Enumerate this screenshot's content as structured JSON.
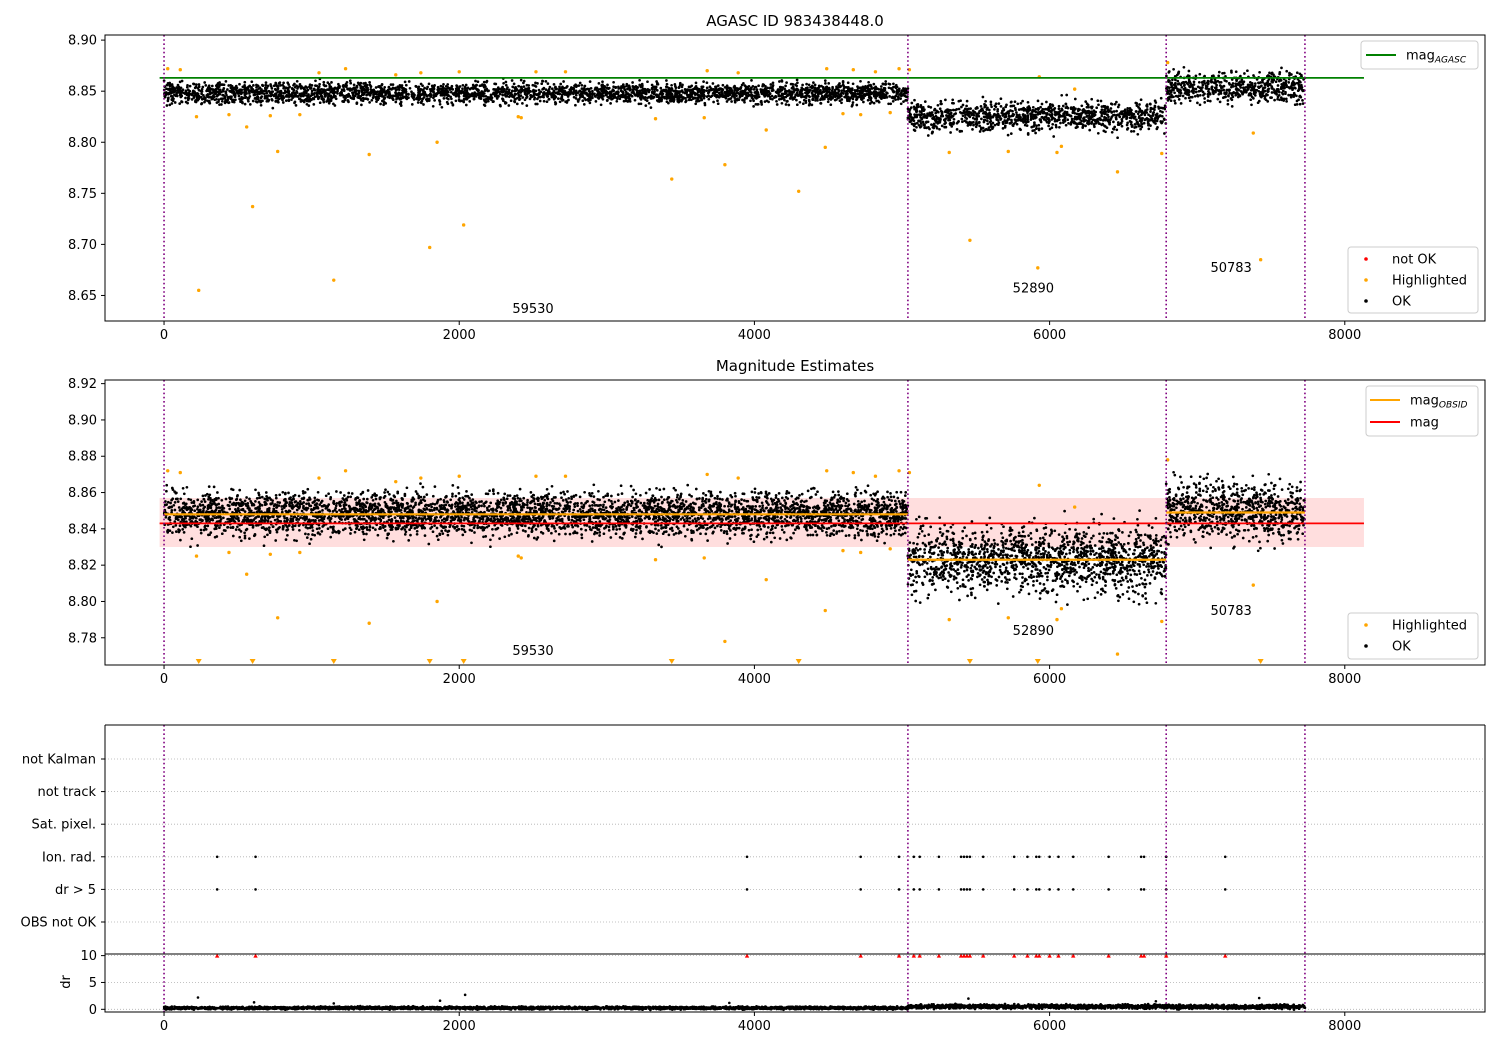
{
  "chart_data": [
    {
      "type": "scatter",
      "title": "AGASC ID 983438448.0",
      "xlim": [
        -400,
        8950
      ],
      "ylim": [
        8.625,
        8.905
      ],
      "x_ticks": [
        0,
        2000,
        4000,
        6000,
        8000
      ],
      "x_tick_labels": [
        "0",
        "2000",
        "4000",
        "6000",
        "8000"
      ],
      "y_ticks": [
        8.65,
        8.7,
        8.75,
        8.8,
        8.85,
        8.9
      ],
      "y_tick_labels": [
        "8.65",
        "8.70",
        "8.75",
        "8.80",
        "8.85",
        "8.90"
      ],
      "grid": false,
      "observation_boundaries": [
        0,
        5040,
        6790,
        7730
      ],
      "observation_labels": [
        {
          "x": 2500,
          "y": 8.633,
          "text": "59530"
        },
        {
          "x": 5890,
          "y": 8.653,
          "text": "52890"
        },
        {
          "x": 7230,
          "y": 8.673,
          "text": "50783"
        }
      ],
      "reference_lines": [
        {
          "name": "mag",
          "subscript": "AGASC",
          "value": 8.863,
          "x_range": [
            -30,
            8130
          ],
          "color": "#008000"
        }
      ],
      "segments": [
        {
          "x_start": 0,
          "x_end": 5040,
          "level": 8.848,
          "spread": 0.005
        },
        {
          "x_start": 5040,
          "x_end": 6790,
          "level": 8.825,
          "spread": 0.007
        },
        {
          "x_start": 6790,
          "x_end": 7730,
          "level": 8.853,
          "spread": 0.007
        }
      ],
      "highlighted_points": [
        [
          25,
          8.872
        ],
        [
          110,
          8.871
        ],
        [
          220,
          8.825
        ],
        [
          235,
          8.655
        ],
        [
          440,
          8.827
        ],
        [
          560,
          8.815
        ],
        [
          600,
          8.737
        ],
        [
          720,
          8.826
        ],
        [
          770,
          8.791
        ],
        [
          920,
          8.827
        ],
        [
          1050,
          8.868
        ],
        [
          1150,
          8.665
        ],
        [
          1230,
          8.872
        ],
        [
          1390,
          8.788
        ],
        [
          1570,
          8.866
        ],
        [
          1740,
          8.868
        ],
        [
          1800,
          8.697
        ],
        [
          1850,
          8.8
        ],
        [
          2000,
          8.869
        ],
        [
          2030,
          8.719
        ],
        [
          2400,
          8.825
        ],
        [
          2420,
          8.824
        ],
        [
          2520,
          8.869
        ],
        [
          2720,
          8.869
        ],
        [
          3330,
          8.823
        ],
        [
          3440,
          8.764
        ],
        [
          3660,
          8.824
        ],
        [
          3680,
          8.87
        ],
        [
          3800,
          8.778
        ],
        [
          3890,
          8.868
        ],
        [
          4080,
          8.812
        ],
        [
          4300,
          8.752
        ],
        [
          4480,
          8.795
        ],
        [
          4490,
          8.872
        ],
        [
          4600,
          8.828
        ],
        [
          4670,
          8.871
        ],
        [
          4720,
          8.827
        ],
        [
          4820,
          8.869
        ],
        [
          4920,
          8.829
        ],
        [
          4980,
          8.872
        ],
        [
          5050,
          8.871
        ],
        [
          5320,
          8.79
        ],
        [
          5460,
          8.704
        ],
        [
          5720,
          8.791
        ],
        [
          5920,
          8.677
        ],
        [
          5930,
          8.864
        ],
        [
          6050,
          8.79
        ],
        [
          6080,
          8.796
        ],
        [
          6170,
          8.852
        ],
        [
          6460,
          8.771
        ],
        [
          6760,
          8.789
        ],
        [
          6800,
          8.878
        ],
        [
          7380,
          8.809
        ],
        [
          7430,
          8.685
        ]
      ],
      "legend": {
        "position": "top-right",
        "entries": [
          {
            "label": "mag",
            "subscript": "AGASC",
            "color": "#008000"
          }
        ]
      },
      "legend2": {
        "position": "lower-right",
        "entries": [
          {
            "label": "not OK",
            "color": "#ff0000"
          },
          {
            "label": "Highlighted",
            "color": "#ffa500"
          },
          {
            "label": "OK",
            "color": "#000000"
          }
        ]
      }
    },
    {
      "type": "scatter",
      "title": "Magnitude Estimates",
      "xlim": [
        -400,
        8950
      ],
      "ylim": [
        8.765,
        8.922
      ],
      "x_ticks": [
        0,
        2000,
        4000,
        6000,
        8000
      ],
      "x_tick_labels": [
        "0",
        "2000",
        "4000",
        "6000",
        "8000"
      ],
      "y_ticks": [
        8.78,
        8.8,
        8.82,
        8.84,
        8.86,
        8.88,
        8.9,
        8.92
      ],
      "y_tick_labels": [
        "8.78",
        "8.80",
        "8.82",
        "8.84",
        "8.86",
        "8.88",
        "8.90",
        "8.92"
      ],
      "grid": false,
      "observation_boundaries": [
        0,
        5040,
        6790,
        7730
      ],
      "observation_labels": [
        {
          "x": 2500,
          "y": 8.7705,
          "text": "59530"
        },
        {
          "x": 5890,
          "y": 8.7815,
          "text": "52890"
        },
        {
          "x": 7230,
          "y": 8.7925,
          "text": "50783"
        }
      ],
      "mag": {
        "value": 8.843,
        "band": [
          8.83,
          8.857
        ],
        "x_range": [
          -30,
          8130
        ],
        "color": "#ff0000"
      },
      "mag_obsid": [
        {
          "x_start": 0,
          "x_end": 5040,
          "value": 8.848
        },
        {
          "x_start": 5040,
          "x_end": 6790,
          "value": 8.823
        },
        {
          "x_start": 6790,
          "x_end": 7730,
          "value": 8.849
        }
      ],
      "segments": [
        {
          "x_start": 0,
          "x_end": 5040,
          "level": 8.848,
          "spread": 0.006
        },
        {
          "x_start": 5040,
          "x_end": 6790,
          "level": 8.823,
          "spread": 0.009
        },
        {
          "x_start": 6790,
          "x_end": 7730,
          "level": 8.85,
          "spread": 0.008
        }
      ],
      "highlighted_points": [
        [
          25,
          8.872
        ],
        [
          110,
          8.871
        ],
        [
          220,
          8.825
        ],
        [
          440,
          8.827
        ],
        [
          560,
          8.815
        ],
        [
          720,
          8.826
        ],
        [
          770,
          8.791
        ],
        [
          920,
          8.827
        ],
        [
          1050,
          8.868
        ],
        [
          1230,
          8.872
        ],
        [
          1390,
          8.788
        ],
        [
          1570,
          8.866
        ],
        [
          1740,
          8.868
        ],
        [
          1850,
          8.8
        ],
        [
          2000,
          8.869
        ],
        [
          2400,
          8.825
        ],
        [
          2420,
          8.824
        ],
        [
          2520,
          8.869
        ],
        [
          2720,
          8.869
        ],
        [
          3330,
          8.823
        ],
        [
          3660,
          8.824
        ],
        [
          3680,
          8.87
        ],
        [
          3800,
          8.778
        ],
        [
          3890,
          8.868
        ],
        [
          4080,
          8.812
        ],
        [
          4480,
          8.795
        ],
        [
          4490,
          8.872
        ],
        [
          4600,
          8.828
        ],
        [
          4670,
          8.871
        ],
        [
          4720,
          8.827
        ],
        [
          4820,
          8.869
        ],
        [
          4920,
          8.829
        ],
        [
          4980,
          8.872
        ],
        [
          5050,
          8.871
        ],
        [
          5320,
          8.79
        ],
        [
          5720,
          8.791
        ],
        [
          5930,
          8.864
        ],
        [
          6050,
          8.79
        ],
        [
          6080,
          8.796
        ],
        [
          6170,
          8.852
        ],
        [
          6460,
          8.771
        ],
        [
          6760,
          8.789
        ],
        [
          6800,
          8.878
        ],
        [
          7380,
          8.809
        ]
      ],
      "below_range_markers": [
        235,
        600,
        1150,
        1800,
        2030,
        3440,
        4300,
        5460,
        5920,
        7430
      ],
      "legend": {
        "position": "top-right",
        "entries": [
          {
            "label": "mag",
            "subscript": "OBSID",
            "color": "#ffa500"
          },
          {
            "label": "mag",
            "color": "#ff0000"
          }
        ]
      },
      "legend2": {
        "position": "lower-right",
        "entries": [
          {
            "label": "Highlighted",
            "color": "#ffa500"
          },
          {
            "label": "OK",
            "color": "#000000"
          }
        ]
      }
    },
    {
      "type": "scatter",
      "title": "",
      "xlim": [
        -400,
        8950
      ],
      "categories": [
        "not Kalman",
        "not track",
        "Sat. pixel.",
        "Ion. rad.",
        "dr > 5",
        "OBS not OK"
      ],
      "flag_events": {
        "Ion. rad.": [
          360,
          620,
          3950,
          4720,
          4980,
          5080,
          5120,
          5250,
          5400,
          5420,
          5440,
          5460,
          5550,
          5760,
          5850,
          5910,
          5930,
          6000,
          6060,
          6160,
          6400,
          6620,
          6640,
          6790,
          7190
        ],
        "dr > 5": [
          360,
          620,
          3950,
          4720,
          4980,
          5080,
          5120,
          5250,
          5400,
          5420,
          5440,
          5460,
          5550,
          5760,
          5850,
          5910,
          5930,
          6000,
          6060,
          6160,
          6400,
          6620,
          6640,
          6790,
          7190
        ]
      },
      "observation_boundaries": [
        0,
        5040,
        6790,
        7730
      ]
    },
    {
      "type": "scatter",
      "title": "",
      "ylabel": "dr",
      "xlim": [
        -400,
        8950
      ],
      "ylim": [
        -0.5,
        10.3
      ],
      "x_ticks": [
        0,
        2000,
        4000,
        6000,
        8000
      ],
      "x_tick_labels": [
        "0",
        "2000",
        "4000",
        "6000",
        "8000"
      ],
      "y_ticks": [
        0,
        5,
        10
      ],
      "y_tick_labels": [
        "0",
        "5",
        "10"
      ],
      "grid": true,
      "capped_markers_at": 10,
      "capped_x": [
        360,
        620,
        3950,
        4720,
        4980,
        5080,
        5120,
        5250,
        5400,
        5420,
        5440,
        5460,
        5550,
        5760,
        5850,
        5910,
        5930,
        6000,
        6060,
        6160,
        6400,
        6620,
        6640,
        6790,
        7190
      ],
      "segments": [
        {
          "x_start": 0,
          "x_end": 5040,
          "level": 0.25,
          "spread": 0.12
        },
        {
          "x_start": 5040,
          "x_end": 6790,
          "level": 0.5,
          "spread": 0.18
        },
        {
          "x_start": 6790,
          "x_end": 7730,
          "level": 0.45,
          "spread": 0.18
        }
      ],
      "outliers": [
        [
          230,
          2.2
        ],
        [
          610,
          1.3
        ],
        [
          1150,
          1.1
        ],
        [
          1870,
          1.6
        ],
        [
          2040,
          2.7
        ],
        [
          3830,
          1.2
        ],
        [
          5450,
          2.0
        ],
        [
          6720,
          1.5
        ],
        [
          7420,
          2.1
        ]
      ],
      "observation_boundaries": [
        0,
        5040,
        6790,
        7730
      ]
    }
  ]
}
